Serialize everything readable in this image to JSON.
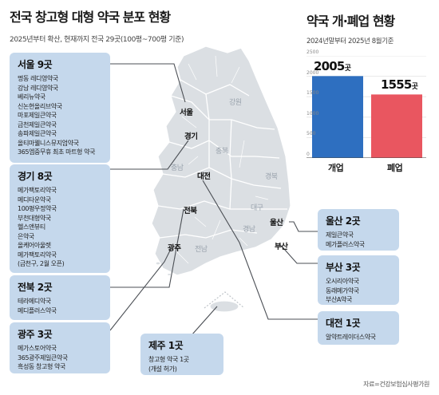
{
  "left_header": {
    "title": "전국 창고형 대형 약국 분포 현황",
    "subtitle": "2025년부터 확산, 현재까지 전국 29곳(100평~700평 기준)"
  },
  "right_header": {
    "title": "약국 개·폐업 현황",
    "subtitle": "2024년말부터 2025년 8월기준"
  },
  "boxes": {
    "seoul": {
      "title": "서울 9곳",
      "items": [
        "명동 레디영약국",
        "강남 레디영약국",
        "베리뉴약국",
        "신논현올리브약국",
        "마포제일큰약국",
        "금천제일큰약국",
        "송파제일큰약국",
        "올티마웰니스뮤지엄약국",
        "365엠중무휴 최초 마트형 약국"
      ]
    },
    "gyeonggi": {
      "title": "경기 8곳",
      "items": [
        "메가팩토리약국",
        "메디타운약국",
        "100평우정약국",
        "부천대형약국",
        "헬스앤뷰티",
        "은약국",
        "올케어아울렛",
        "메가팩토리약국",
        "(금천구, 2월 오픈)"
      ]
    },
    "jeonbuk": {
      "title": "전북 2곳",
      "items": [
        "테라메디약국",
        "메디플러스약국"
      ]
    },
    "gwangju": {
      "title": "광주 3곳",
      "items": [
        "메가스토어약국",
        "365광주제일큰약국",
        "흑성동 창고형 약국"
      ]
    },
    "jeju": {
      "title": "제주 1곳",
      "items": [
        "창고형 약국 1곳",
        "(개설 허가)"
      ]
    },
    "ulsan": {
      "title": "울산 2곳",
      "items": [
        "제일큰약국",
        "메가플러스약국"
      ]
    },
    "busan": {
      "title": "부산 3곳",
      "items": [
        "오시리아약국",
        "동래메가약국",
        "부산A약국"
      ]
    },
    "daejeon": {
      "title": "대전 1곳",
      "items": [
        "알약트레이더스약국"
      ]
    }
  },
  "map_labels": {
    "seoul": "서울",
    "gyeonggi": "경기",
    "daejeon": "대전",
    "jeonbuk": "전북",
    "gwangju": "광주",
    "ulsan": "울산",
    "busan": "부산",
    "gangwon": "강원",
    "chungbuk": "충북",
    "chungnam": "충남",
    "gyeongbuk": "경북",
    "daegu": "대구",
    "gyeongnam": "경남",
    "jeonnam": "전남"
  },
  "colors": {
    "box_bg": "#c5d8ec",
    "map_fill": "#dbdfe3",
    "open_bar": "#2e6fc0",
    "close_bar": "#e95660",
    "leader_line": "#4b4f55"
  },
  "chart_data": {
    "type": "bar",
    "categories": [
      "개업",
      "폐업"
    ],
    "values": [
      2005,
      1555
    ],
    "value_labels": [
      "2005",
      "1555"
    ],
    "unit": "곳",
    "ylim": [
      0,
      2500
    ],
    "yticks": [
      "2500",
      "2000",
      "1500",
      "1000",
      "500",
      "0"
    ],
    "grid": true,
    "colors": [
      "#2e6fc0",
      "#e95660"
    ]
  },
  "source": "자료=건강보험심사평가원"
}
